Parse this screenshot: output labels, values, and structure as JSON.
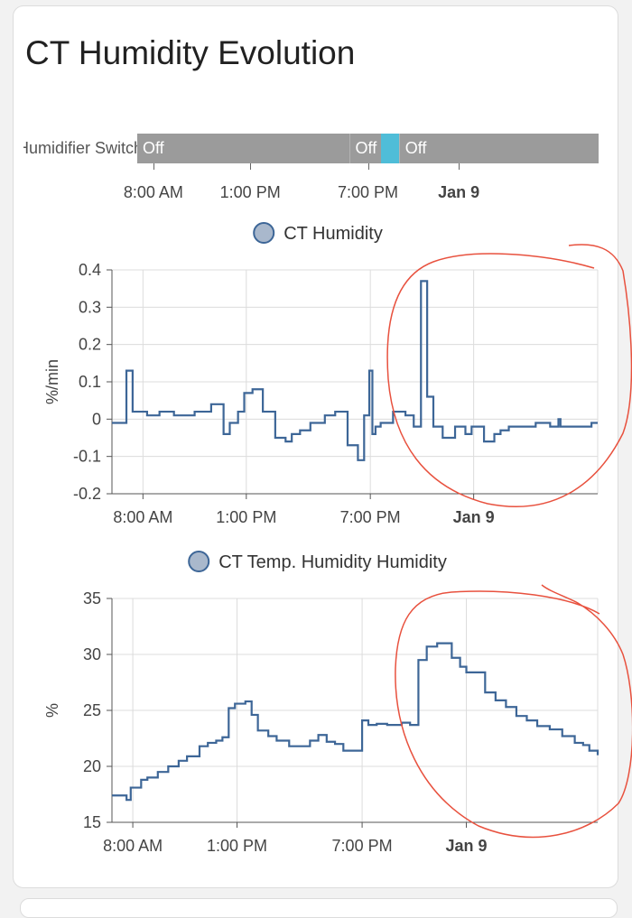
{
  "card": {
    "title": "CT Humidity Evolution"
  },
  "timeline": {
    "entity_label": "CT Humidifier Switch",
    "segments": [
      {
        "state": "Off",
        "start": 0,
        "end": 0.459
      },
      {
        "state": "Off",
        "start": 0.459,
        "end": 0.529
      },
      {
        "state": "on",
        "start": 0.529,
        "end": 0.567
      },
      {
        "state": "Off",
        "start": 0.567,
        "end": 1.0
      }
    ],
    "ticks": [
      "8:00 AM",
      "1:00 PM",
      "7:00 PM",
      "Jan 9"
    ],
    "tick_positions": [
      0.035,
      0.245,
      0.5,
      0.697
    ],
    "bold_ticks": [
      "Jan 9"
    ]
  },
  "colors": {
    "line": "#3d6697",
    "legend_fill": "#a9b8cc",
    "grid": "#dcdcdc",
    "axis": "#555555",
    "timeline_off": "#9b9b9b",
    "timeline_on": "#4fbdd8",
    "annotation": "#e8513e"
  },
  "chart_data": [
    {
      "type": "line",
      "step": true,
      "legend": "CT Humidity",
      "ylabel": "%/min",
      "xlabel": "",
      "ylim": [
        -0.2,
        0.4
      ],
      "yticks": [
        -0.2,
        -0.1,
        0,
        0.1,
        0.2,
        0.3,
        0.4
      ],
      "ytick_labels": [
        "-0.2",
        "-0.1",
        "0",
        "0.1",
        "0.2",
        "0.3",
        "0.4"
      ],
      "xlim": [
        6.5,
        30
      ],
      "xticks": [
        8,
        13,
        19,
        24
      ],
      "xtick_labels": [
        "8:00 AM",
        "1:00 PM",
        "7:00 PM",
        "Jan 9"
      ],
      "bold_xticks": [
        "Jan 9"
      ],
      "series": [
        {
          "name": "CT Humidity",
          "x": [
            6.5,
            7.2,
            7.5,
            8.2,
            8.8,
            9.5,
            10.5,
            11.3,
            11.9,
            12.2,
            12.6,
            12.9,
            13.3,
            13.8,
            14.4,
            14.9,
            15.2,
            15.6,
            16.1,
            16.8,
            17.3,
            17.9,
            18.4,
            18.7,
            18.95,
            19.1,
            19.25,
            19.5,
            20.1,
            20.7,
            21.1,
            21.45,
            21.75,
            22.05,
            22.5,
            23.1,
            23.6,
            23.9,
            24.5,
            25.0,
            25.3,
            25.7,
            26.3,
            27.0,
            27.7,
            28.1,
            28.2,
            29.0,
            29.7
          ],
          "values": [
            -0.01,
            0.13,
            0.02,
            0.01,
            0.02,
            0.01,
            0.02,
            0.04,
            -0.04,
            -0.01,
            0.02,
            0.07,
            0.08,
            0.02,
            -0.05,
            -0.06,
            -0.04,
            -0.03,
            -0.01,
            0.01,
            0.02,
            -0.07,
            -0.11,
            0.01,
            0.13,
            -0.04,
            -0.02,
            -0.01,
            0.02,
            0.01,
            -0.02,
            0.37,
            0.06,
            -0.02,
            -0.05,
            -0.02,
            -0.04,
            -0.02,
            -0.06,
            -0.04,
            -0.03,
            -0.02,
            -0.02,
            -0.01,
            -0.02,
            0.0,
            -0.02,
            -0.02,
            -0.01
          ]
        }
      ]
    },
    {
      "type": "line",
      "step": true,
      "legend": "CT Temp. Humidity Humidity",
      "ylabel": "%",
      "xlabel": "",
      "ylim": [
        15,
        35
      ],
      "yticks": [
        15,
        20,
        25,
        30,
        35
      ],
      "ytick_labels": [
        "15",
        "20",
        "25",
        "30",
        "35"
      ],
      "xlim": [
        7.0,
        30.3
      ],
      "xticks": [
        8,
        13,
        19,
        24
      ],
      "xtick_labels": [
        "8:00 AM",
        "1:00 PM",
        "7:00 PM",
        "Jan 9"
      ],
      "bold_xticks": [
        "Jan 9"
      ],
      "series": [
        {
          "name": "CT Temp. Humidity Humidity",
          "x": [
            7.0,
            7.7,
            7.9,
            8.4,
            8.7,
            9.2,
            9.7,
            10.2,
            10.6,
            11.2,
            11.6,
            12.0,
            12.3,
            12.6,
            12.9,
            13.4,
            13.7,
            14.0,
            14.5,
            14.9,
            15.5,
            16.0,
            16.5,
            16.9,
            17.3,
            17.7,
            18.1,
            18.5,
            19.0,
            19.3,
            19.7,
            20.2,
            20.9,
            21.3,
            21.7,
            22.1,
            22.6,
            23.3,
            23.7,
            24.0,
            24.4,
            24.9,
            25.4,
            25.9,
            26.4,
            26.9,
            27.4,
            28.0,
            28.6,
            29.2,
            29.6,
            29.9,
            30.3
          ],
          "values": [
            17.4,
            17.0,
            18.1,
            18.8,
            19.0,
            19.5,
            20.0,
            20.5,
            20.9,
            21.8,
            22.1,
            22.3,
            22.6,
            25.2,
            25.6,
            25.8,
            24.6,
            23.2,
            22.7,
            22.3,
            21.8,
            21.8,
            22.3,
            22.8,
            22.2,
            22.0,
            21.4,
            21.4,
            24.1,
            23.7,
            23.8,
            23.7,
            23.9,
            23.7,
            29.5,
            30.7,
            31.0,
            29.7,
            28.9,
            28.4,
            28.4,
            26.6,
            25.9,
            25.3,
            24.5,
            24.1,
            23.6,
            23.3,
            22.7,
            22.1,
            21.9,
            21.4,
            21.0
          ]
        }
      ]
    }
  ]
}
